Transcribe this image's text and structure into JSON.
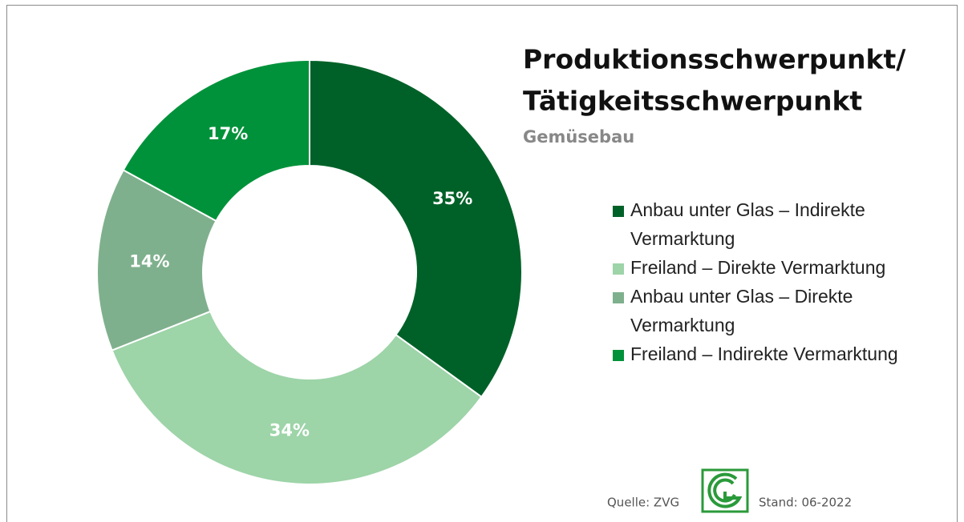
{
  "chart_data": {
    "type": "donut",
    "title": [
      "Produktionsschwerpunkt/",
      "Tätigkeitsschwerpunkt"
    ],
    "subtitle": "Gemüsebau",
    "categories": [
      "Anbau unter Glas – Indirekte Vermarktung",
      "Freiland – Direkte Vermarktung",
      "Anbau unter Glas – Direkte Vermarktung",
      "Freiland – Indirekte Vermarktung"
    ],
    "values": [
      35,
      34,
      14,
      17
    ],
    "value_labels": [
      "35%",
      "34%",
      "14%",
      "17%"
    ],
    "colors": [
      "#006128",
      "#9dd4a8",
      "#7fb08d",
      "#00923a"
    ],
    "source": "Quelle: ZVG",
    "date": "Stand: 06-2022"
  }
}
